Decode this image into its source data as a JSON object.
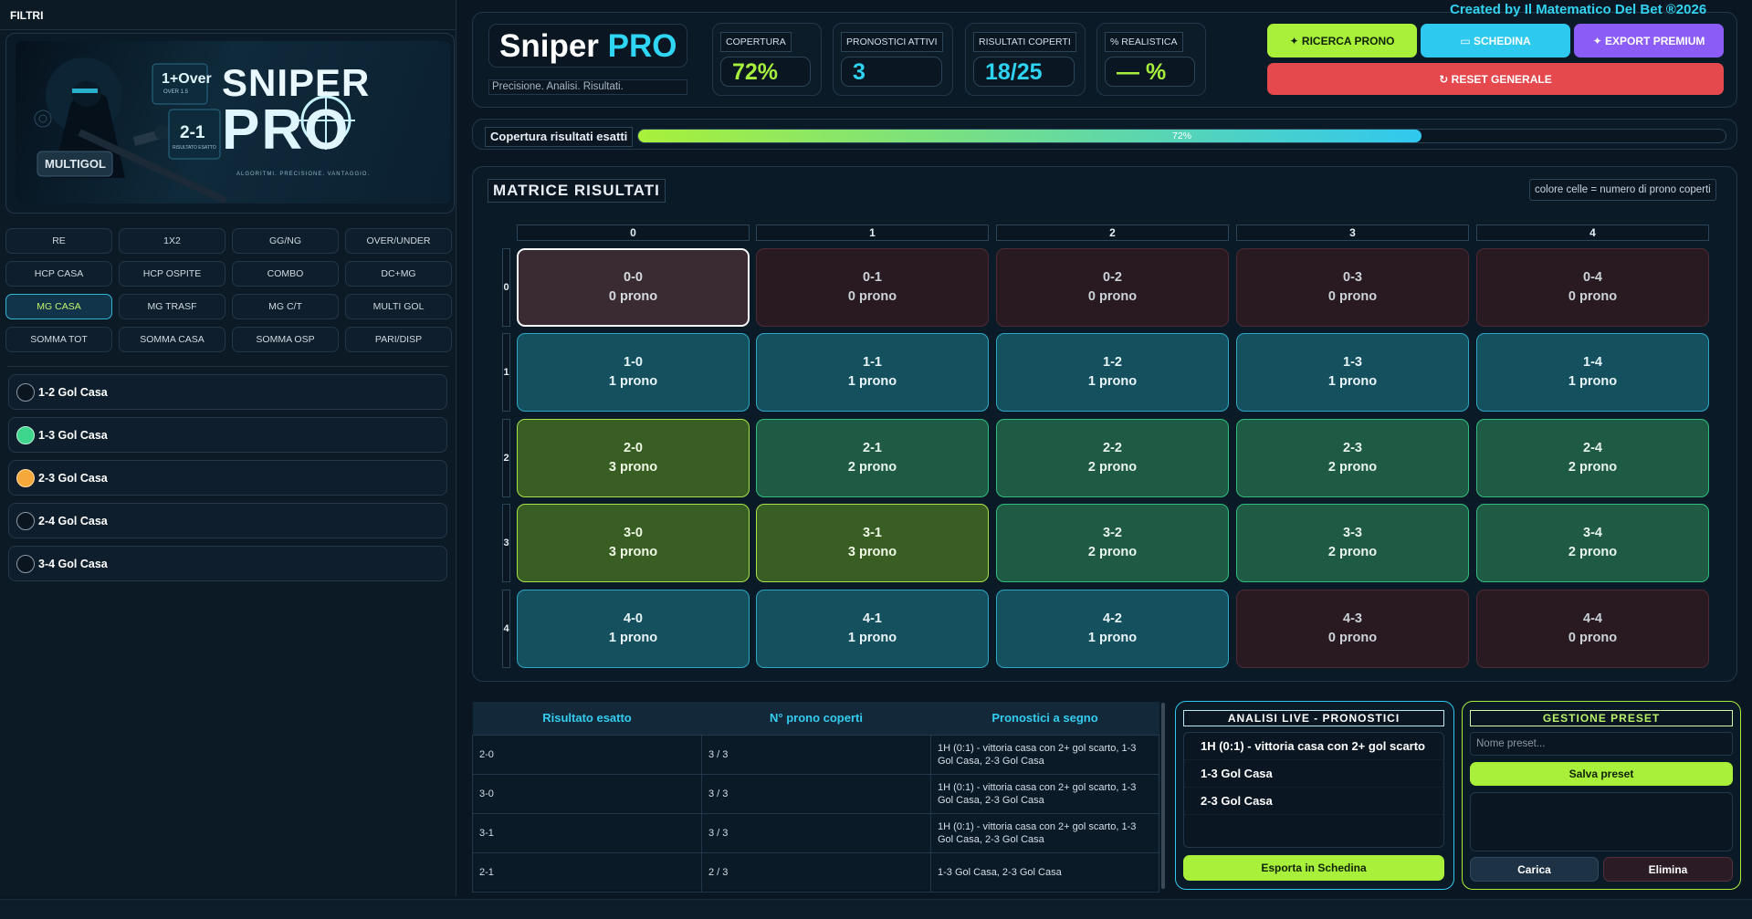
{
  "sidebar": {
    "title": "FILTRI",
    "banner": {
      "brand_line1": "SNIPER",
      "brand_line2": "PRO",
      "badge": "MULTIGOL",
      "tag1": "1+Over",
      "tag1_sub": "OVER 1.5",
      "tag2": "2-1",
      "tag2_sub": "RISULTATO ESATTO",
      "slogan": "ALGORITMI. PRECISIONE. VANTAGGIO."
    },
    "filters": [
      "RE",
      "1X2",
      "GG/NG",
      "OVER/UNDER",
      "HCP CASA",
      "HCP OSPITE",
      "COMBO",
      "DC+MG",
      "MG CASA",
      "MG TRASF",
      "MG C/T",
      "MULTI GOL",
      "SOMMA TOT",
      "SOMMA CASA",
      "SOMMA OSP",
      "PARI/DISP"
    ],
    "options": [
      {
        "label": "1-2 Gol Casa",
        "state": "off"
      },
      {
        "label": "1-3 Gol Casa",
        "state": "green"
      },
      {
        "label": "2-3 Gol Casa",
        "state": "orange"
      },
      {
        "label": "2-4 Gol Casa",
        "state": "off"
      },
      {
        "label": "3-4 Gol Casa",
        "state": "off"
      }
    ]
  },
  "header": {
    "logo_a": "Sniper",
    "logo_b": "PRO",
    "tagline": "Precisione. Analisi. Risultati.",
    "created_by": "Created by Il Matematico Del Bet ®2026",
    "stats": [
      {
        "label": "COPERTURA",
        "value": "72%",
        "color": "#a6ef3e"
      },
      {
        "label": "PRONOSTICI ATTIVI",
        "value": "3",
        "color": "#2fd3f2"
      },
      {
        "label": "RISULTATI COPERTI",
        "value": "18/25",
        "color": "#2fd3f2"
      },
      {
        "label": "% REALISTICA",
        "value": "— %",
        "color": "#a6ef3e"
      }
    ],
    "buttons": {
      "ricerca": "✦ RICERCA PRONO",
      "schedina": "▭ SCHEDINA",
      "export": "✦ EXPORT PREMIUM",
      "reset": "↻ RESET GENERALE"
    }
  },
  "coverage": {
    "label": "Copertura risultati esatti",
    "percent": 72,
    "text": "72%"
  },
  "matrix": {
    "title": "MATRICE RISULTATI",
    "note": "colore celle = numero di prono coperti",
    "cols": [
      "0",
      "1",
      "2",
      "3",
      "4"
    ],
    "rows": [
      "0",
      "1",
      "2",
      "3",
      "4"
    ],
    "cells": [
      [
        {
          "score": "0-0",
          "prono": "0 prono",
          "n": 0,
          "selected": true
        },
        {
          "score": "0-1",
          "prono": "0 prono",
          "n": 0
        },
        {
          "score": "0-2",
          "prono": "0 prono",
          "n": 0
        },
        {
          "score": "0-3",
          "prono": "0 prono",
          "n": 0
        },
        {
          "score": "0-4",
          "prono": "0 prono",
          "n": 0
        }
      ],
      [
        {
          "score": "1-0",
          "prono": "1 prono",
          "n": 1
        },
        {
          "score": "1-1",
          "prono": "1 prono",
          "n": 1
        },
        {
          "score": "1-2",
          "prono": "1 prono",
          "n": 1
        },
        {
          "score": "1-3",
          "prono": "1 prono",
          "n": 1
        },
        {
          "score": "1-4",
          "prono": "1 prono",
          "n": 1
        }
      ],
      [
        {
          "score": "2-0",
          "prono": "3 prono",
          "n": 3
        },
        {
          "score": "2-1",
          "prono": "2 prono",
          "n": 2
        },
        {
          "score": "2-2",
          "prono": "2 prono",
          "n": 2
        },
        {
          "score": "2-3",
          "prono": "2 prono",
          "n": 2
        },
        {
          "score": "2-4",
          "prono": "2 prono",
          "n": 2
        }
      ],
      [
        {
          "score": "3-0",
          "prono": "3 prono",
          "n": 3
        },
        {
          "score": "3-1",
          "prono": "3 prono",
          "n": 3
        },
        {
          "score": "3-2",
          "prono": "2 prono",
          "n": 2
        },
        {
          "score": "3-3",
          "prono": "2 prono",
          "n": 2
        },
        {
          "score": "3-4",
          "prono": "2 prono",
          "n": 2
        }
      ],
      [
        {
          "score": "4-0",
          "prono": "1 prono",
          "n": 1
        },
        {
          "score": "4-1",
          "prono": "1 prono",
          "n": 1
        },
        {
          "score": "4-2",
          "prono": "1 prono",
          "n": 1
        },
        {
          "score": "4-3",
          "prono": "0 prono",
          "n": 0
        },
        {
          "score": "4-4",
          "prono": "0 prono",
          "n": 0
        }
      ]
    ]
  },
  "results_table": {
    "headers": [
      "Risultato esatto",
      "N° prono coperti",
      "Pronostici a segno"
    ],
    "rows": [
      [
        "2-0",
        "3 / 3",
        "1H (0:1) - vittoria casa con 2+ gol scarto, 1-3 Gol Casa, 2-3 Gol Casa"
      ],
      [
        "3-0",
        "3 / 3",
        "1H (0:1) - vittoria casa con 2+ gol scarto, 1-3 Gol Casa, 2-3 Gol Casa"
      ],
      [
        "3-1",
        "3 / 3",
        "1H (0:1) - vittoria casa con 2+ gol scarto, 1-3 Gol Casa, 2-3 Gol Casa"
      ],
      [
        "2-1",
        "2 / 3",
        "1-3 Gol Casa, 2-3 Gol Casa"
      ]
    ]
  },
  "live_panel": {
    "title": "ANALISI LIVE - PRONOSTICI",
    "items": [
      "1H (0:1) - vittoria casa con 2+ gol scarto",
      "1-3 Gol Casa",
      "2-3 Gol Casa"
    ],
    "export_button": "Esporta in Schedina"
  },
  "preset_panel": {
    "title": "GESTIONE PRESET",
    "name_placeholder": "Nome preset...",
    "save_button": "Salva preset",
    "load_button": "Carica",
    "delete_button": "Elimina"
  },
  "colors": {
    "accent_green": "#a6ef3e",
    "accent_cyan": "#2fd3f2",
    "accent_purple": "#8b5cf6",
    "reset_red": "#e5484d"
  }
}
